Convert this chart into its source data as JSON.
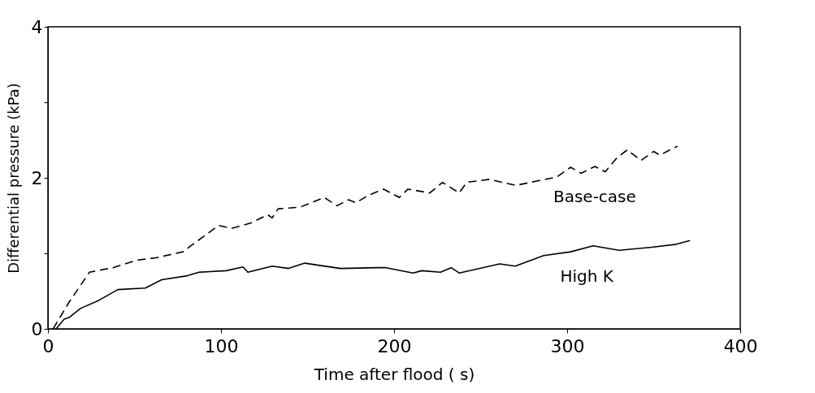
{
  "chart_data": {
    "type": "line",
    "xlabel": "Time after flood ( s)",
    "ylabel": "Differential pressure (kPa)",
    "xlim": [
      0,
      400
    ],
    "xticks": [
      0,
      100,
      200,
      300,
      400
    ],
    "ylim": [
      0,
      4
    ],
    "yticks": [
      0,
      {
        "value": 1,
        "label": null
      },
      2,
      {
        "value": 3,
        "label": null
      },
      4
    ],
    "grid": false,
    "series": [
      {
        "name": "Base-case",
        "color": "#000000",
        "line_style": "dashed",
        "x": [
          3,
          12.4,
          24,
          37.5,
          51.6,
          62.4,
          78,
          82.6,
          98.6,
          106,
          117,
          127,
          129.6,
          133,
          145.5,
          159.6,
          167,
          173.7,
          178,
          184.5,
          190.6,
          194,
          203,
          208,
          220.6,
          228,
          237.6,
          242,
          255,
          270.4,
          283,
          294,
          302,
          308,
          316,
          322,
          328.6,
          334.7,
          342.7,
          350,
          353.5,
          363.8
        ],
        "values": [
          0,
          0.36,
          0.75,
          0.81,
          0.91,
          0.94,
          1.02,
          1.1,
          1.37,
          1.33,
          1.4,
          1.51,
          1.47,
          1.59,
          1.61,
          1.74,
          1.63,
          1.71,
          1.67,
          1.76,
          1.82,
          1.85,
          1.74,
          1.85,
          1.8,
          1.94,
          1.8,
          1.94,
          1.98,
          1.9,
          1.96,
          2.01,
          2.14,
          2.06,
          2.15,
          2.08,
          2.26,
          2.37,
          2.23,
          2.35,
          2.3,
          2.42
        ]
      },
      {
        "name": "High K",
        "color": "#000000",
        "line_style": "solid",
        "x": [
          4.7,
          9.4,
          12.2,
          18.8,
          29.6,
          40.4,
          56.3,
          65.7,
          79.8,
          87.3,
          103,
          112.7,
          115.5,
          129.6,
          139,
          148.4,
          169,
          190.6,
          195.3,
          211,
          216,
          226.8,
          233,
          237.6,
          261,
          270,
          286.4,
          302,
          315,
          330,
          348.8,
          363,
          371
        ],
        "values": [
          0,
          0.13,
          0.15,
          0.27,
          0.38,
          0.52,
          0.54,
          0.65,
          0.7,
          0.75,
          0.77,
          0.82,
          0.75,
          0.83,
          0.8,
          0.87,
          0.8,
          0.81,
          0.81,
          0.74,
          0.77,
          0.75,
          0.81,
          0.74,
          0.86,
          0.83,
          0.97,
          1.02,
          1.1,
          1.04,
          1.08,
          1.12,
          1.17
        ]
      }
    ]
  }
}
